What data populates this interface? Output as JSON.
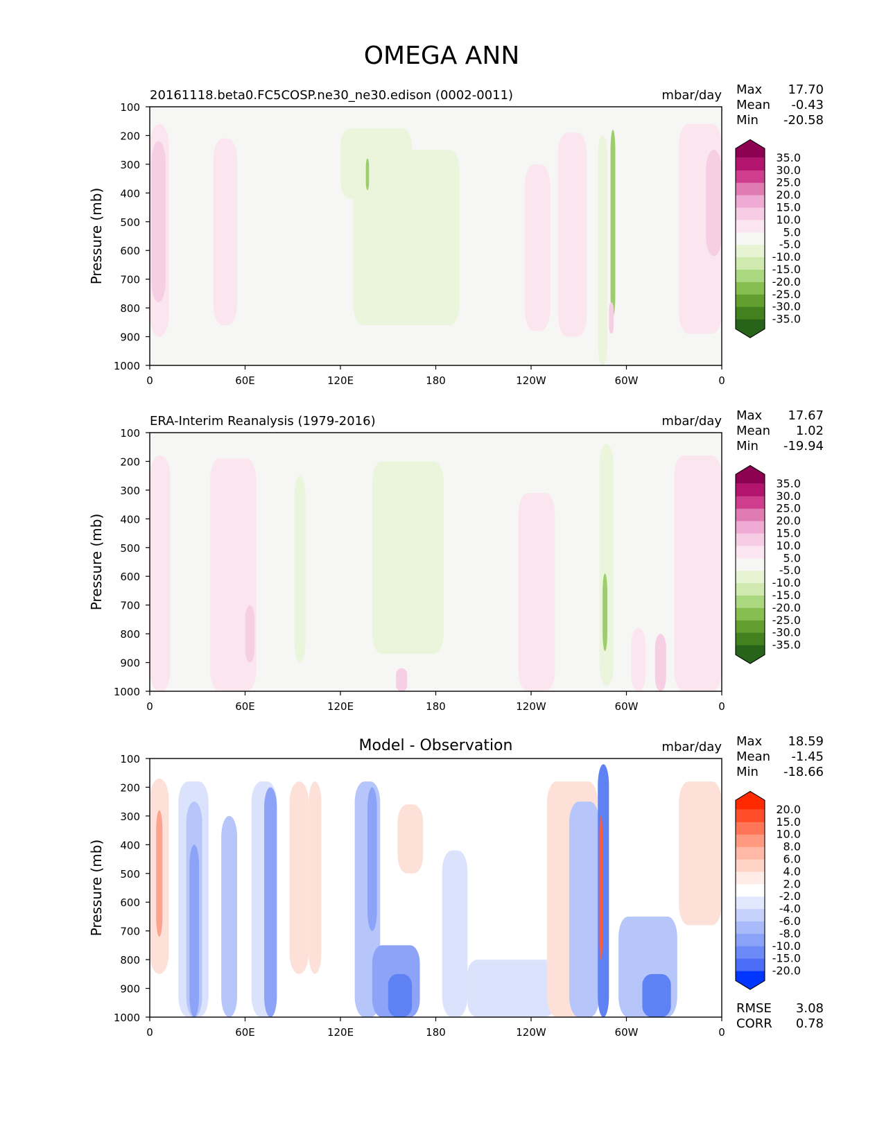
{
  "figure_title": "OMEGA ANN",
  "colors": {
    "plot_background": "#f6f6f4",
    "diff_background": "#ffffff",
    "pink_light": "#fbe6f0",
    "pink_mid": "#f6cfe4",
    "pink_dark": "#e98fbf",
    "green_light": "#eaf5dc",
    "green_mid": "#d3ebb7",
    "green_dark": "#9cce6b",
    "blue_light": "#dbe3fc",
    "blue_mid": "#b7c6fa",
    "blue_dark": "#5e81f4",
    "red_light": "#fde1d9",
    "red_mid": "#fbbbab"
  },
  "chart_data": [
    {
      "type": "heatmap",
      "title": "",
      "subtitle": "20161118.beta0.FC5COSP.ne30_ne30.edison (0002-0011)",
      "units": "mbar/day",
      "ylabel": "Pressure (mb)",
      "xlabel": "",
      "xlim": [
        0,
        360
      ],
      "ylim": [
        1000,
        100
      ],
      "x_ticks": [
        "0",
        "60E",
        "120E",
        "180",
        "120W",
        "60W",
        "0"
      ],
      "y_ticks": [
        "100",
        "200",
        "300",
        "400",
        "500",
        "600",
        "700",
        "800",
        "900",
        "1000"
      ],
      "stats": {
        "max_label": "Max",
        "max": "17.70",
        "mean_label": "Mean",
        "mean": "-0.43",
        "min_label": "Min",
        "min": "-20.58"
      },
      "colorbar": {
        "levels": [
          "35.0",
          "30.0",
          "25.0",
          "20.0",
          "15.0",
          "10.0",
          "5.0",
          "-5.0",
          "-10.0",
          "-15.0",
          "-20.0",
          "-25.0",
          "-30.0",
          "-35.0"
        ],
        "colors": [
          "#8e0152",
          "#b3146e",
          "#cf3e8d",
          "#e17bb4",
          "#efabd3",
          "#f7cde5",
          "#fbe5f1",
          "#f6f6f4",
          "#e6f4d4",
          "#cfe9ae",
          "#abd780",
          "#86bf4f",
          "#639f2e",
          "#43811e",
          "#276419"
        ]
      },
      "regions": [
        {
          "x": [
            0,
            12
          ],
          "y": [
            160,
            900
          ],
          "level": 10
        },
        {
          "x": [
            1,
            10
          ],
          "y": [
            220,
            780
          ],
          "level": 15
        },
        {
          "x": [
            40,
            55
          ],
          "y": [
            210,
            860
          ],
          "level": 10
        },
        {
          "x": [
            120,
            165
          ],
          "y": [
            175,
            420
          ],
          "level": -5
        },
        {
          "x": [
            128,
            195
          ],
          "y": [
            250,
            860
          ],
          "level": -5
        },
        {
          "x": [
            136,
            138
          ],
          "y": [
            280,
            390
          ],
          "level": -10
        },
        {
          "x": [
            236,
            252
          ],
          "y": [
            300,
            880
          ],
          "level": 10
        },
        {
          "x": [
            257,
            275
          ],
          "y": [
            190,
            900
          ],
          "level": 10
        },
        {
          "x": [
            282,
            288
          ],
          "y": [
            200,
            1000
          ],
          "level": -5
        },
        {
          "x": [
            290,
            293
          ],
          "y": [
            180,
            830
          ],
          "level": -10
        },
        {
          "x": [
            289,
            292
          ],
          "y": [
            780,
            890
          ],
          "level": 15
        },
        {
          "x": [
            333,
            360
          ],
          "y": [
            160,
            890
          ],
          "level": 10
        },
        {
          "x": [
            350,
            360
          ],
          "y": [
            250,
            620
          ],
          "level": 15
        }
      ]
    },
    {
      "type": "heatmap",
      "title": "",
      "subtitle": "ERA-Interim Reanalysis (1979-2016)",
      "units": "mbar/day",
      "ylabel": "Pressure (mb)",
      "xlabel": "",
      "xlim": [
        0,
        360
      ],
      "ylim": [
        1000,
        100
      ],
      "x_ticks": [
        "0",
        "60E",
        "120E",
        "180",
        "120W",
        "60W",
        "0"
      ],
      "y_ticks": [
        "100",
        "200",
        "300",
        "400",
        "500",
        "600",
        "700",
        "800",
        "900",
        "1000"
      ],
      "stats": {
        "max_label": "Max",
        "max": "17.67",
        "mean_label": "Mean",
        "mean": "1.02",
        "min_label": "Min",
        "min": "-19.94"
      },
      "colorbar": {
        "levels": [
          "35.0",
          "30.0",
          "25.0",
          "20.0",
          "15.0",
          "10.0",
          "5.0",
          "-5.0",
          "-10.0",
          "-15.0",
          "-20.0",
          "-25.0",
          "-30.0",
          "-35.0"
        ],
        "colors": [
          "#8e0152",
          "#b3146e",
          "#cf3e8d",
          "#e17bb4",
          "#efabd3",
          "#f7cde5",
          "#fbe5f1",
          "#f6f6f4",
          "#e6f4d4",
          "#cfe9ae",
          "#abd780",
          "#86bf4f",
          "#639f2e",
          "#43811e",
          "#276419"
        ]
      },
      "regions": [
        {
          "x": [
            0,
            13
          ],
          "y": [
            180,
            1000
          ],
          "level": 10
        },
        {
          "x": [
            38,
            67
          ],
          "y": [
            190,
            1000
          ],
          "level": 10
        },
        {
          "x": [
            60,
            66
          ],
          "y": [
            700,
            900
          ],
          "level": 15
        },
        {
          "x": [
            91,
            98
          ],
          "y": [
            250,
            900
          ],
          "level": -5
        },
        {
          "x": [
            140,
            185
          ],
          "y": [
            200,
            870
          ],
          "level": -5
        },
        {
          "x": [
            155,
            162
          ],
          "y": [
            920,
            1000
          ],
          "level": 15
        },
        {
          "x": [
            232,
            255
          ],
          "y": [
            310,
            1000
          ],
          "level": 10
        },
        {
          "x": [
            283,
            292
          ],
          "y": [
            140,
            980
          ],
          "level": -5
        },
        {
          "x": [
            285,
            288
          ],
          "y": [
            590,
            860
          ],
          "level": -10
        },
        {
          "x": [
            303,
            312
          ],
          "y": [
            780,
            1000
          ],
          "level": 10
        },
        {
          "x": [
            318,
            325
          ],
          "y": [
            800,
            1000
          ],
          "level": 15
        },
        {
          "x": [
            330,
            360
          ],
          "y": [
            180,
            1000
          ],
          "level": 10
        }
      ]
    },
    {
      "type": "heatmap",
      "title": "Model - Observation",
      "subtitle": "",
      "units": "mbar/day",
      "ylabel": "Pressure (mb)",
      "xlabel": "",
      "xlim": [
        0,
        360
      ],
      "ylim": [
        1000,
        100
      ],
      "x_ticks": [
        "0",
        "60E",
        "120E",
        "180",
        "120W",
        "60W",
        "0"
      ],
      "y_ticks": [
        "100",
        "200",
        "300",
        "400",
        "500",
        "600",
        "700",
        "800",
        "900",
        "1000"
      ],
      "stats": {
        "max_label": "Max",
        "max": "18.59",
        "mean_label": "Mean",
        "mean": "-1.45",
        "min_label": "Min",
        "min": "-18.66"
      },
      "rmse_label": "RMSE",
      "rmse": "3.08",
      "corr_label": "CORR",
      "corr": "0.78",
      "colorbar": {
        "levels": [
          "20.0",
          "15.0",
          "10.0",
          "8.0",
          "6.0",
          "4.0",
          "2.0",
          "-2.0",
          "-4.0",
          "-6.0",
          "-8.0",
          "-10.0",
          "-15.0",
          "-20.0"
        ],
        "colors": [
          "#ff2a00",
          "#ff4d2a",
          "#ff7558",
          "#ff9a80",
          "#ffb9a6",
          "#ffd3c6",
          "#ffece6",
          "#ffffff",
          "#e2e8fd",
          "#c5d1fb",
          "#a8bafa",
          "#8aa2f8",
          "#6c8af7",
          "#4a6cf6",
          "#0036ff"
        ]
      },
      "regions": [
        {
          "x": [
            0,
            12
          ],
          "y": [
            170,
            850
          ],
          "level": 4
        },
        {
          "x": [
            4,
            8
          ],
          "y": [
            280,
            720
          ],
          "level": 6
        },
        {
          "x": [
            18,
            37
          ],
          "y": [
            180,
            1000
          ],
          "level": -2
        },
        {
          "x": [
            23,
            33
          ],
          "y": [
            250,
            1000
          ],
          "level": -4
        },
        {
          "x": [
            25,
            31
          ],
          "y": [
            400,
            1000
          ],
          "level": -8
        },
        {
          "x": [
            45,
            55
          ],
          "y": [
            300,
            1000
          ],
          "level": -4
        },
        {
          "x": [
            64,
            80
          ],
          "y": [
            180,
            1000
          ],
          "level": -2
        },
        {
          "x": [
            72,
            80
          ],
          "y": [
            200,
            1000
          ],
          "level": -6
        },
        {
          "x": [
            88,
            100
          ],
          "y": [
            180,
            850
          ],
          "level": 4
        },
        {
          "x": [
            100,
            108
          ],
          "y": [
            180,
            850
          ],
          "level": 4
        },
        {
          "x": [
            129,
            145
          ],
          "y": [
            180,
            1000
          ],
          "level": -4
        },
        {
          "x": [
            137,
            143
          ],
          "y": [
            200,
            700
          ],
          "level": -6
        },
        {
          "x": [
            140,
            170
          ],
          "y": [
            750,
            1000
          ],
          "level": -6
        },
        {
          "x": [
            150,
            165
          ],
          "y": [
            850,
            1000
          ],
          "level": -10
        },
        {
          "x": [
            156,
            172
          ],
          "y": [
            260,
            500
          ],
          "level": 4
        },
        {
          "x": [
            184,
            200
          ],
          "y": [
            420,
            1000
          ],
          "level": -2
        },
        {
          "x": [
            200,
            255
          ],
          "y": [
            800,
            1000
          ],
          "level": -2
        },
        {
          "x": [
            250,
            282
          ],
          "y": [
            180,
            1000
          ],
          "level": 4
        },
        {
          "x": [
            264,
            283
          ],
          "y": [
            250,
            1000
          ],
          "level": -4
        },
        {
          "x": [
            282,
            289
          ],
          "y": [
            120,
            1000
          ],
          "level": -10
        },
        {
          "x": [
            283,
            285
          ],
          "y": [
            300,
            800
          ],
          "level": 10
        },
        {
          "x": [
            295,
            332
          ],
          "y": [
            650,
            1000
          ],
          "level": -4
        },
        {
          "x": [
            310,
            328
          ],
          "y": [
            850,
            1000
          ],
          "level": -10
        },
        {
          "x": [
            333,
            360
          ],
          "y": [
            180,
            680
          ],
          "level": 4
        }
      ]
    }
  ]
}
